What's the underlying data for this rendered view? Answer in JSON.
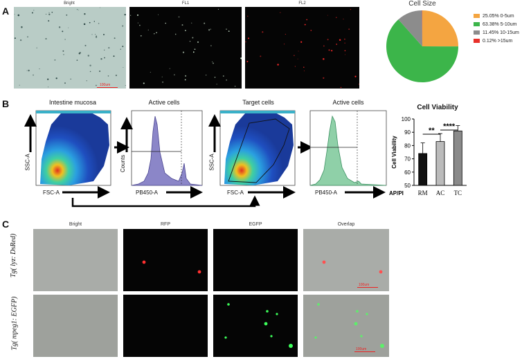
{
  "panel_a": {
    "letter": "A",
    "images": [
      {
        "label": "Bright",
        "kind": "bright"
      },
      {
        "label": "FL1",
        "kind": "fl1"
      },
      {
        "label": "FL2",
        "kind": "fl2"
      }
    ],
    "scale_label": "100um"
  },
  "panel_b": {
    "letter": "B",
    "plots": [
      {
        "title": "Intestine mucosa",
        "xlabel": "FSC-A",
        "ylabel": "SSC-A"
      },
      {
        "title": "Active cells",
        "xlabel": "PB450-A",
        "ylabel": "Counts"
      },
      {
        "title": "Target cells",
        "xlabel": "FSC-A",
        "ylabel": "SSC-A"
      },
      {
        "title": "Active cells",
        "xlabel": "PB450-A",
        "ylabel": ""
      }
    ]
  },
  "panel_c": {
    "letter": "C",
    "columns": [
      "Bright",
      "RFP",
      "EGFP",
      "Overlap"
    ],
    "rows": [
      "Tg( lyz: DsRed)",
      "Tg( mpeg1: EGFP)"
    ],
    "scale_label": "100um"
  },
  "chart_data": [
    {
      "type": "pie",
      "title": "Cell Size",
      "labels": [
        "25.05%  0-5um",
        "63.38%  5-10um",
        "11.45%  10-15um",
        "0.12%  >15um"
      ],
      "values": [
        25.05,
        63.38,
        11.45,
        0.12
      ],
      "colors": [
        "#f4a541",
        "#3cb54a",
        "#8c8c8c",
        "#e8302a"
      ],
      "legend_position": "right"
    },
    {
      "type": "bar",
      "title": "Cell Viability",
      "categories": [
        "RM",
        "AC",
        "TC"
      ],
      "values": [
        74,
        83,
        91
      ],
      "errors": [
        8,
        6,
        4
      ],
      "colors": [
        "#111111",
        "#bbbbbb",
        "#8a8a8a"
      ],
      "ylabel": "Cell Viability",
      "xlabel": "AP/PI",
      "ylim": [
        50,
        100
      ],
      "yticks": [
        50,
        60,
        70,
        80,
        90,
        100
      ],
      "significance": [
        {
          "from": "RM",
          "to": "AC",
          "label": "**"
        },
        {
          "from": "AC",
          "to": "TC",
          "label": "****"
        }
      ]
    }
  ]
}
